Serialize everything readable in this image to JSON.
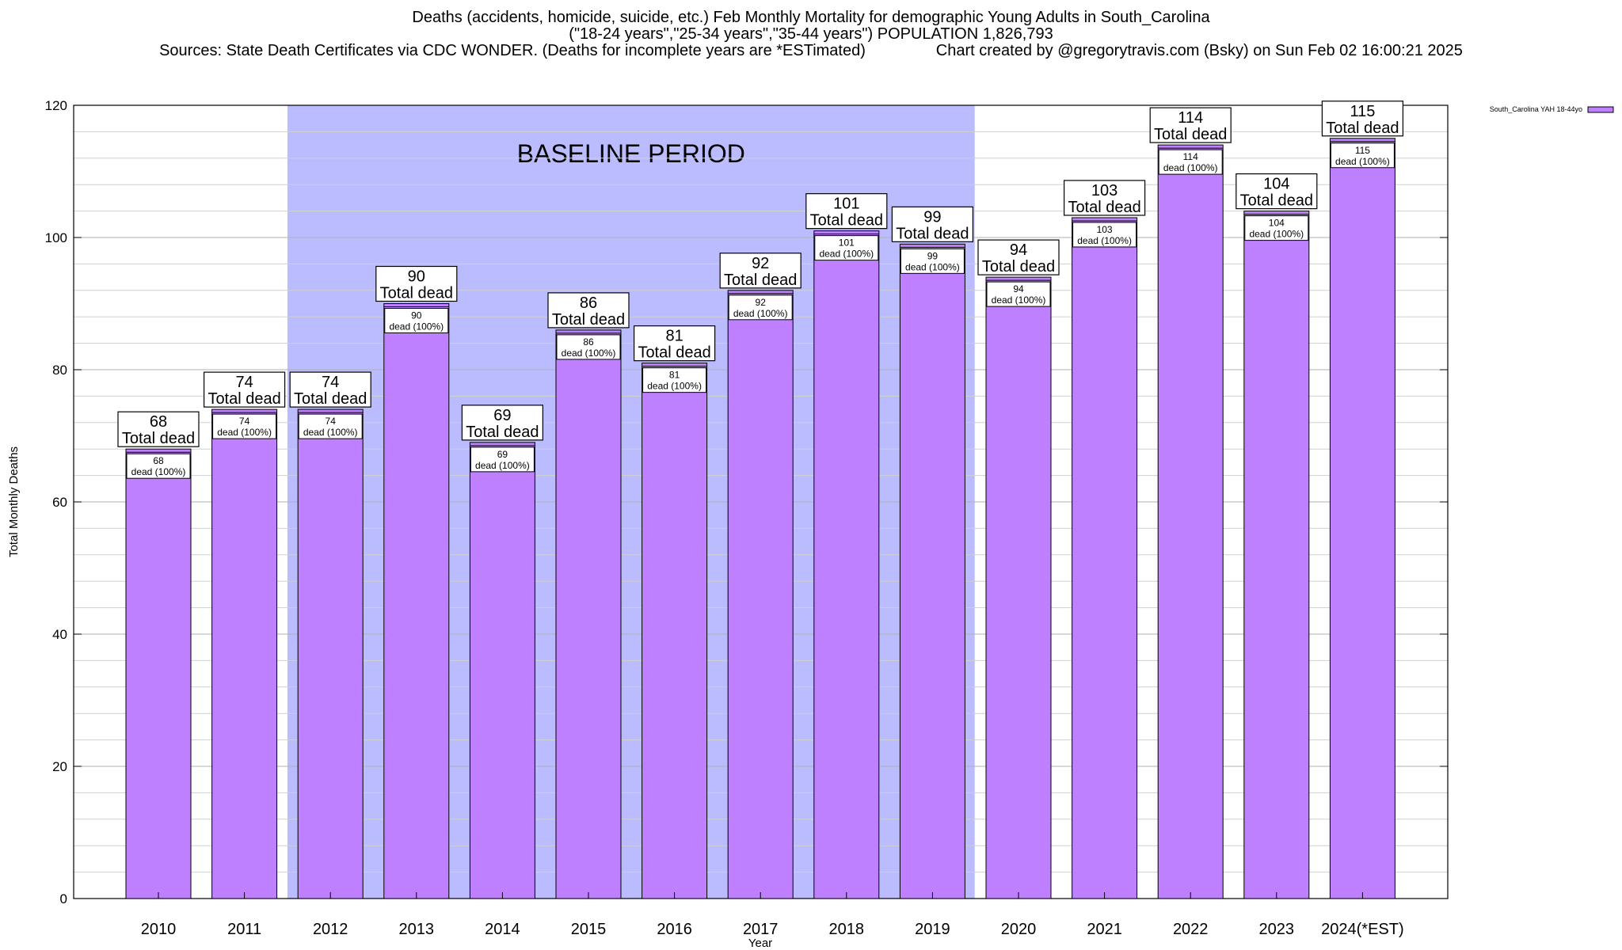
{
  "chart_data": {
    "type": "bar",
    "title": "Deaths (accidents, homicide, suicide, etc.) Feb Monthly Mortality for demographic Young Adults in South_Carolina",
    "subtitle": "(\"18-24 years\",\"25-34 years\",\"35-44 years\") POPULATION 1,826,793",
    "source_line": "Sources: State Death Certificates via CDC WONDER. (Deaths for incomplete years are *ESTimated)",
    "credit_line": "Chart created by @gregorytravis.com (Bsky) on Sun Feb 02 16:00:21 2025",
    "xlabel": "Year",
    "ylabel": "Total Monthly Deaths",
    "ylim": [
      0,
      120
    ],
    "y_ticks": [
      0,
      20,
      40,
      60,
      80,
      100,
      120
    ],
    "grid": true,
    "legend": {
      "position": "top-right",
      "entries": [
        "South_Carolina YAH 18-44yo"
      ]
    },
    "baseline": {
      "label": "BASELINE PERIOD",
      "start": "2012",
      "end": "2019",
      "color": "#bbbbff"
    },
    "categories": [
      "2010",
      "2011",
      "2012",
      "2013",
      "2014",
      "2015",
      "2016",
      "2017",
      "2018",
      "2019",
      "2020",
      "2021",
      "2022",
      "2023",
      "2024(*EST)"
    ],
    "series": [
      {
        "name": "South_Carolina YAH 18-44yo",
        "color": "#bf80ff",
        "values": [
          68,
          74,
          74,
          90,
          69,
          86,
          81,
          92,
          101,
          99,
          94,
          103,
          114,
          104,
          115
        ]
      }
    ],
    "total_label_word": "Total dead",
    "inner_label_suffix": "dead (100%)"
  }
}
